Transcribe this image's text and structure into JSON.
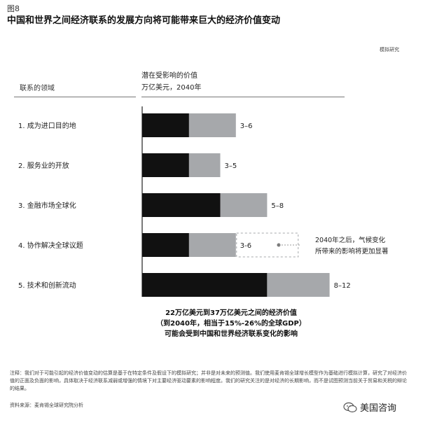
{
  "figure_label": "图8",
  "title": "中国和世界之间经济联系的发展方向将可能带来巨大的经济价值变动",
  "sim_tag": "模拟研究",
  "header": {
    "left": "联系的领域",
    "right_line1": "潜在受影响的价值",
    "right_line2": "万亿美元，2040年"
  },
  "colors": {
    "low": "#111111",
    "high": "#a6a8ab",
    "dash": "#a6a8ab"
  },
  "chart_data": {
    "type": "bar",
    "orientation": "horizontal",
    "stacked": "range",
    "categories": [
      "1. 成为进口目的地",
      "2. 服务业的开放",
      "3. 金融市场全球化",
      "4. 协作解决全球议题",
      "5. 技术和创新流动"
    ],
    "low": [
      3,
      3,
      5,
      3,
      8
    ],
    "high": [
      6,
      5,
      8,
      6,
      12
    ],
    "value_labels": [
      "3–6",
      "3–5",
      "5–8",
      "3-6",
      "8–12"
    ],
    "annotation": {
      "category_index": 3,
      "line1": "2040年之后，气候变化",
      "line2": "所带来的影响将更加显著"
    }
  },
  "summary": {
    "line1": "22万亿美元到37万亿美元之间的经济价值",
    "line2": "（到2040年，相当于15%-26%的全球GDP）",
    "line3": "可能会受到中国和世界经济联系变化的影响"
  },
  "note": "注释：我们对于可能引起的经济价值变动的估算是基于在特定条件及假设下的模拟研究；并非是对未来的预测值。我们使用麦肯锡全球增长模型作为基础进行模拟计算，研究了对经济价值的正面及负面的影响，具体取决于经济联系减弱或增强的情境下对主要经济驱动要素的影响程度。我们的研究关注的是对经济的长期影响，而不是试图预测当前关于贸易和关税的辩论的结果。",
  "source": "资料来源：麦肯锡全球研究院分析",
  "wechat": {
    "icon": "wechat-icon",
    "name": "美国咨询"
  }
}
